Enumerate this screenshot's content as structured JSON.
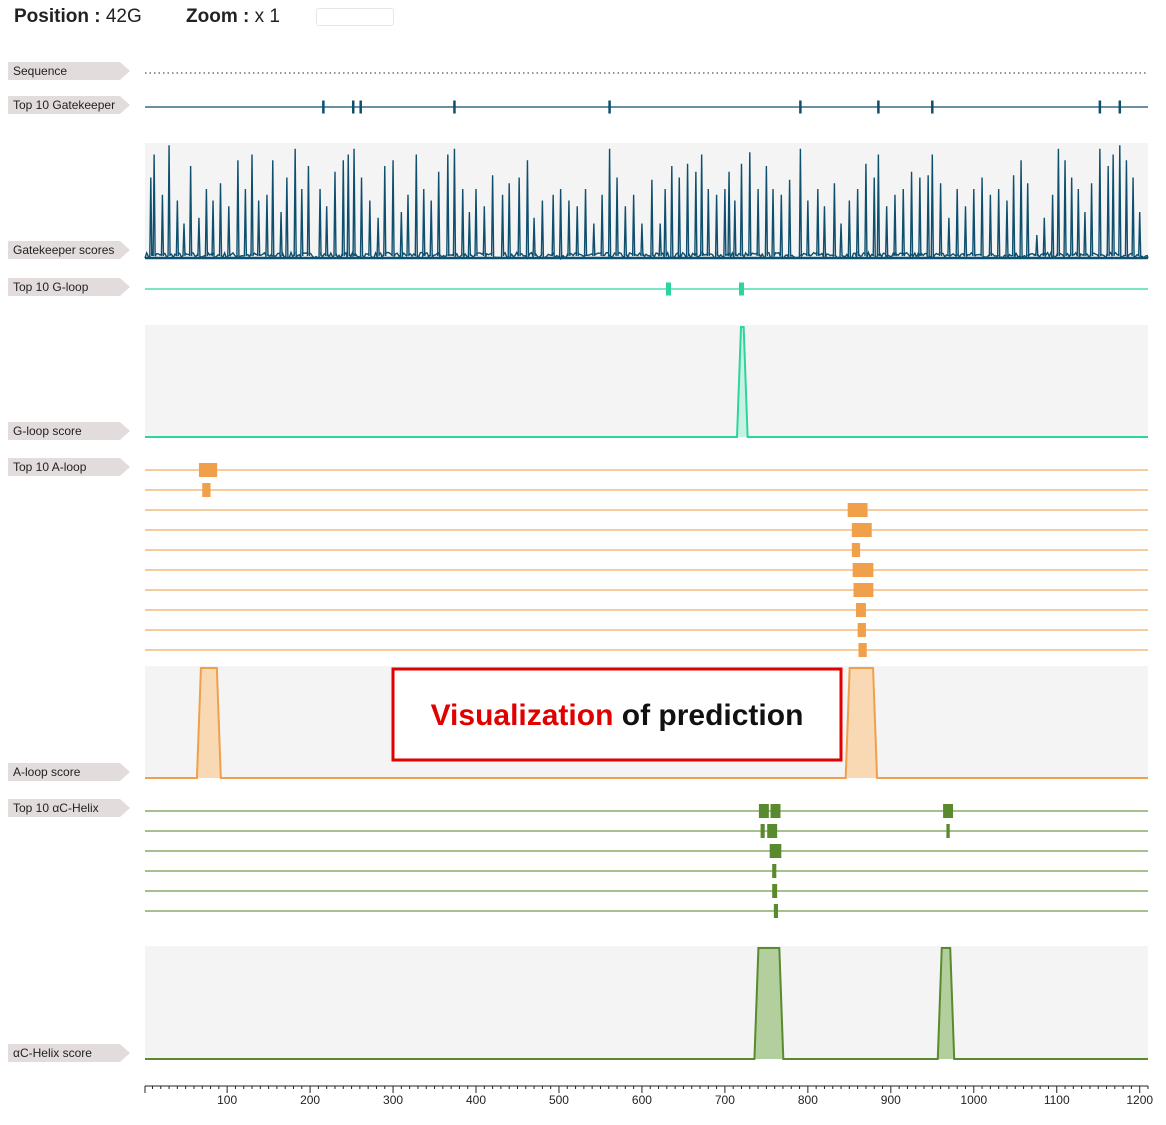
{
  "header": {
    "position_label": "Position : ",
    "position_value": "42G",
    "zoom_label": "Zoom : ",
    "zoom_value": "x 1",
    "search_value": ""
  },
  "annotation": {
    "highlight": "Visualization",
    "rest": " of prediction",
    "highlight_color": "#e00000",
    "border_color": "#e00000"
  },
  "colors": {
    "gatekeeper": "#0e4f6e",
    "gloop": "#2dd4a0",
    "aloop": "#f0a04b",
    "aloop_fill": "#f9d8b4",
    "achelix": "#5a8a2e",
    "achelix_fill": "#b4cf9e",
    "panel_bg": "#f4f4f4",
    "label_tag": "#e3dcdc"
  },
  "chart_data": {
    "type": "track-viewer",
    "x_axis": {
      "range": [
        1,
        1210
      ],
      "ticks": [
        "100",
        "200",
        "300",
        "400",
        "500",
        "600",
        "700",
        "800",
        "900",
        "1000",
        "1100",
        "1200"
      ]
    },
    "tracks": [
      {
        "id": "sequence",
        "label": "Sequence",
        "kind": "sequence"
      },
      {
        "id": "gk-top",
        "label": "Top 10 Gatekeeper",
        "kind": "ticks",
        "positions": [
          216,
          252,
          261,
          374,
          561,
          791,
          885,
          950,
          1152,
          1176
        ]
      },
      {
        "id": "gk-score",
        "label": "Gatekeeper scores",
        "kind": "spiky",
        "peaks": [
          [
            8,
            0.7
          ],
          [
            12,
            0.9
          ],
          [
            22,
            0.55
          ],
          [
            30,
            0.98
          ],
          [
            40,
            0.5
          ],
          [
            48,
            0.3
          ],
          [
            56,
            0.8
          ],
          [
            66,
            0.35
          ],
          [
            75,
            0.6
          ],
          [
            83,
            0.5
          ],
          [
            92,
            0.65
          ],
          [
            102,
            0.45
          ],
          [
            113,
            0.85
          ],
          [
            122,
            0.6
          ],
          [
            130,
            0.9
          ],
          [
            138,
            0.5
          ],
          [
            148,
            0.55
          ],
          [
            155,
            0.85
          ],
          [
            165,
            0.4
          ],
          [
            172,
            0.7
          ],
          [
            182,
            0.95
          ],
          [
            190,
            0.6
          ],
          [
            198,
            0.8
          ],
          [
            212,
            0.6
          ],
          [
            220,
            0.45
          ],
          [
            230,
            0.75
          ],
          [
            240,
            0.85
          ],
          [
            246,
            0.9
          ],
          [
            253,
            0.95
          ],
          [
            262,
            0.7
          ],
          [
            272,
            0.5
          ],
          [
            282,
            0.35
          ],
          [
            290,
            0.8
          ],
          [
            300,
            0.85
          ],
          [
            310,
            0.4
          ],
          [
            318,
            0.55
          ],
          [
            328,
            0.9
          ],
          [
            337,
            0.6
          ],
          [
            346,
            0.5
          ],
          [
            355,
            0.75
          ],
          [
            366,
            0.9
          ],
          [
            374,
            0.95
          ],
          [
            384,
            0.6
          ],
          [
            392,
            0.4
          ],
          [
            400,
            0.6
          ],
          [
            410,
            0.45
          ],
          [
            420,
            0.72
          ],
          [
            432,
            0.55
          ],
          [
            440,
            0.65
          ],
          [
            452,
            0.7
          ],
          [
            462,
            0.85
          ],
          [
            470,
            0.35
          ],
          [
            480,
            0.5
          ],
          [
            493,
            0.55
          ],
          [
            502,
            0.6
          ],
          [
            512,
            0.5
          ],
          [
            522,
            0.45
          ],
          [
            532,
            0.6
          ],
          [
            542,
            0.3
          ],
          [
            552,
            0.55
          ],
          [
            561,
            0.95
          ],
          [
            570,
            0.7
          ],
          [
            580,
            0.45
          ],
          [
            590,
            0.55
          ],
          [
            600,
            0.3
          ],
          [
            612,
            0.68
          ],
          [
            622,
            0.3
          ],
          [
            628,
            0.6
          ],
          [
            636,
            0.8
          ],
          [
            645,
            0.7
          ],
          [
            655,
            0.82
          ],
          [
            665,
            0.75
          ],
          [
            672,
            0.9
          ],
          [
            680,
            0.6
          ],
          [
            690,
            0.55
          ],
          [
            700,
            0.6
          ],
          [
            705,
            0.75
          ],
          [
            712,
            0.5
          ],
          [
            720,
            0.82
          ],
          [
            730,
            0.92
          ],
          [
            740,
            0.6
          ],
          [
            750,
            0.8
          ],
          [
            758,
            0.6
          ],
          [
            768,
            0.55
          ],
          [
            778,
            0.68
          ],
          [
            791,
            0.95
          ],
          [
            800,
            0.5
          ],
          [
            812,
            0.6
          ],
          [
            820,
            0.45
          ],
          [
            832,
            0.65
          ],
          [
            840,
            0.3
          ],
          [
            850,
            0.5
          ],
          [
            860,
            0.6
          ],
          [
            870,
            0.82
          ],
          [
            880,
            0.7
          ],
          [
            885,
            0.9
          ],
          [
            895,
            0.45
          ],
          [
            905,
            0.55
          ],
          [
            915,
            0.6
          ],
          [
            925,
            0.75
          ],
          [
            935,
            0.7
          ],
          [
            945,
            0.72
          ],
          [
            950,
            0.9
          ],
          [
            960,
            0.65
          ],
          [
            970,
            0.35
          ],
          [
            980,
            0.6
          ],
          [
            990,
            0.45
          ],
          [
            1000,
            0.6
          ],
          [
            1010,
            0.7
          ],
          [
            1020,
            0.55
          ],
          [
            1030,
            0.6
          ],
          [
            1040,
            0.5
          ],
          [
            1048,
            0.72
          ],
          [
            1057,
            0.85
          ],
          [
            1065,
            0.65
          ],
          [
            1076,
            0.2
          ],
          [
            1085,
            0.35
          ],
          [
            1095,
            0.55
          ],
          [
            1102,
            0.95
          ],
          [
            1110,
            0.85
          ],
          [
            1118,
            0.7
          ],
          [
            1126,
            0.6
          ],
          [
            1134,
            0.4
          ],
          [
            1142,
            0.65
          ],
          [
            1152,
            0.95
          ],
          [
            1162,
            0.8
          ],
          [
            1168,
            0.9
          ],
          [
            1176,
            0.98
          ],
          [
            1184,
            0.85
          ],
          [
            1192,
            0.7
          ],
          [
            1200,
            0.4
          ]
        ]
      },
      {
        "id": "gl-top",
        "label": "Top 10 G-loop",
        "kind": "ticks",
        "positions": [
          632,
          720
        ]
      },
      {
        "id": "gl-score",
        "label": "G-loop score",
        "kind": "area",
        "peaks": [
          [
            717,
            725
          ]
        ]
      },
      {
        "id": "al-top",
        "label": "Top 10 A-loop",
        "kind": "rows",
        "rows": [
          [
            [
              66,
              88
            ]
          ],
          [
            [
              70,
              80
            ]
          ],
          [
            [
              848,
              872
            ]
          ],
          [
            [
              853,
              877
            ]
          ],
          [
            [
              853,
              863
            ]
          ],
          [
            [
              854,
              879
            ]
          ],
          [
            [
              855,
              879
            ]
          ],
          [
            [
              858,
              870
            ]
          ],
          [
            [
              860,
              870
            ]
          ],
          [
            [
              861,
              871
            ]
          ]
        ]
      },
      {
        "id": "al-score",
        "label": "A-loop score",
        "kind": "area",
        "peaks": [
          [
            66,
            90
          ],
          [
            848,
            881
          ]
        ]
      },
      {
        "id": "ac-top",
        "label": "Top 10 αC-Helix",
        "kind": "rows",
        "rows": [
          [
            [
              741,
              753
            ],
            [
              755,
              767
            ],
            [
              963,
              975
            ]
          ],
          [
            [
              743,
              748
            ],
            [
              751,
              763
            ],
            [
              967,
              971
            ]
          ],
          [
            [
              754,
              768
            ]
          ],
          [
            [
              757,
              762
            ]
          ],
          [
            [
              757,
              763
            ]
          ],
          [
            [
              759,
              764
            ]
          ]
        ]
      },
      {
        "id": "ac-score",
        "label": "αC-Helix score",
        "kind": "area",
        "peaks": [
          [
            738,
            768
          ],
          [
            959,
            974
          ]
        ]
      }
    ]
  }
}
